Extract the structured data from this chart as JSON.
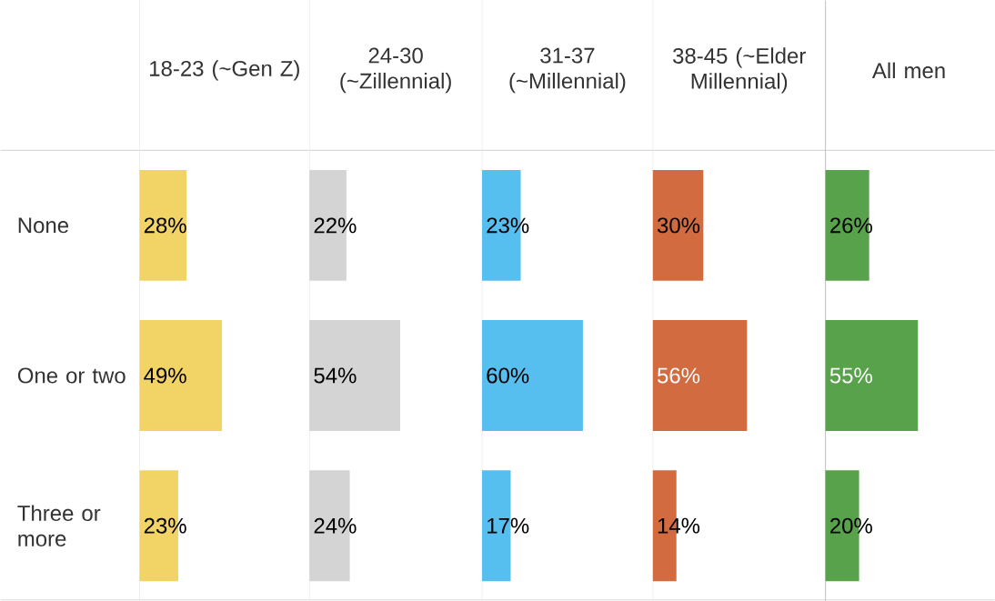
{
  "chart_data": [
    {
      "type": "bar",
      "orientation": "horizontal",
      "title": "18-23 (~Gen Z)",
      "categories": [
        "None",
        "One or two",
        "Three or more"
      ],
      "values": [
        28,
        49,
        23
      ],
      "value_labels": [
        "28%",
        "49%",
        "23%"
      ],
      "color": "#f2d366",
      "tick_labels": "y"
    },
    {
      "type": "bar",
      "orientation": "horizontal",
      "title": "24-30 (~Zillennial)",
      "categories": [
        null,
        null,
        null
      ],
      "values": [
        22,
        54,
        24
      ],
      "value_labels": [
        "22%",
        "54%",
        "24%"
      ],
      "color": "#d4d4d4",
      "tick_labels": false
    },
    {
      "type": "bar",
      "orientation": "horizontal",
      "title": "31-37 (~Millennial)",
      "categories": [
        null,
        null,
        null
      ],
      "values": [
        23,
        60,
        17
      ],
      "value_labels": [
        "23%",
        "60%",
        "17%"
      ],
      "color": "#56bff0",
      "tick_labels": false
    },
    {
      "type": "bar",
      "orientation": "horizontal",
      "title": "38-45 (~Elder Millennial)",
      "categories": [
        null,
        null,
        null
      ],
      "values": [
        30,
        56,
        14
      ],
      "value_labels": [
        "30%",
        "56%",
        "14%"
      ],
      "color": "#d36b40",
      "tick_labels": false
    },
    {
      "type": "bar",
      "orientation": "horizontal",
      "title": "All men",
      "categories": [
        null,
        null,
        null
      ],
      "values": [
        26,
        55,
        20
      ],
      "value_labels": [
        "26%",
        "55%",
        "20%"
      ],
      "color": "#58a24c",
      "tick_labels": false
    }
  ]
}
